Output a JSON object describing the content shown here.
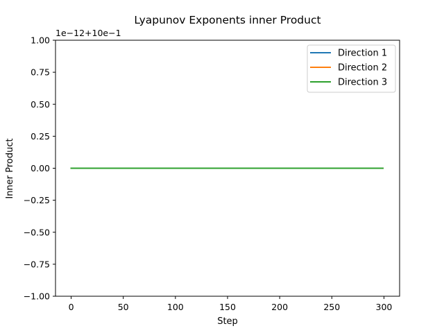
{
  "chart_data": {
    "type": "line",
    "title": "Lyapunov Exponents inner Product",
    "xlabel": "Step",
    "ylabel": "Inner Product",
    "offset_text": "1e−12+10e−1",
    "xlim": [
      -15,
      315
    ],
    "ylim": [
      -1.0,
      1.0
    ],
    "x_ticks": [
      0,
      50,
      100,
      150,
      200,
      250,
      300
    ],
    "y_ticks": [
      -1.0,
      -0.75,
      -0.5,
      -0.25,
      0.0,
      0.25,
      0.5,
      0.75,
      1.0
    ],
    "y_tick_labels": [
      "−1.00",
      "−0.75",
      "−0.50",
      "−0.25",
      "0.00",
      "0.25",
      "0.50",
      "0.75",
      "1.00"
    ],
    "grid": false,
    "legend_position": "top-right",
    "x_range": [
      0,
      299
    ],
    "series": [
      {
        "name": "Direction 1",
        "color": "#1f77b4",
        "x": [
          0,
          299
        ],
        "y": [
          0.0,
          0.0
        ]
      },
      {
        "name": "Direction 2",
        "color": "#ff7f0e",
        "x": [
          0,
          299
        ],
        "y": [
          0.0,
          0.0
        ]
      },
      {
        "name": "Direction 3",
        "color": "#2ca02c",
        "x": [
          0,
          299
        ],
        "y": [
          0.0,
          0.0
        ]
      }
    ]
  }
}
